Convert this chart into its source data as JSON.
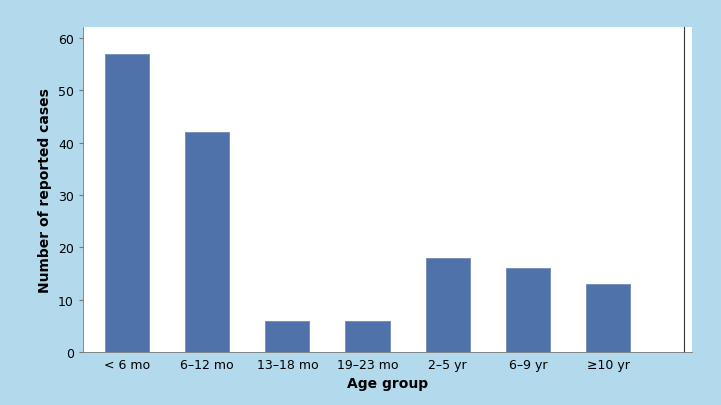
{
  "categories": [
    "< 6 mo",
    "6–12 mo",
    "13–18 mo",
    "19–23 mo",
    "2–5 yr",
    "6–9 yr",
    "≥10 yr"
  ],
  "values": [
    57,
    42,
    6,
    6,
    18,
    16,
    13
  ],
  "bar_color": "#4f72aa",
  "bar_edgecolor": "#7a90b8",
  "xlabel": "Age group",
  "ylabel": "Number of reported cases",
  "ylim": [
    0,
    62
  ],
  "yticks": [
    0,
    10,
    20,
    30,
    40,
    50,
    60
  ],
  "background_outer": "#b3d9ed",
  "background_plot": "#ffffff",
  "xlabel_fontsize": 10,
  "ylabel_fontsize": 10,
  "tick_fontsize": 9,
  "bar_width": 0.55,
  "spine_color": "#777777",
  "right_line_color": "#333333"
}
